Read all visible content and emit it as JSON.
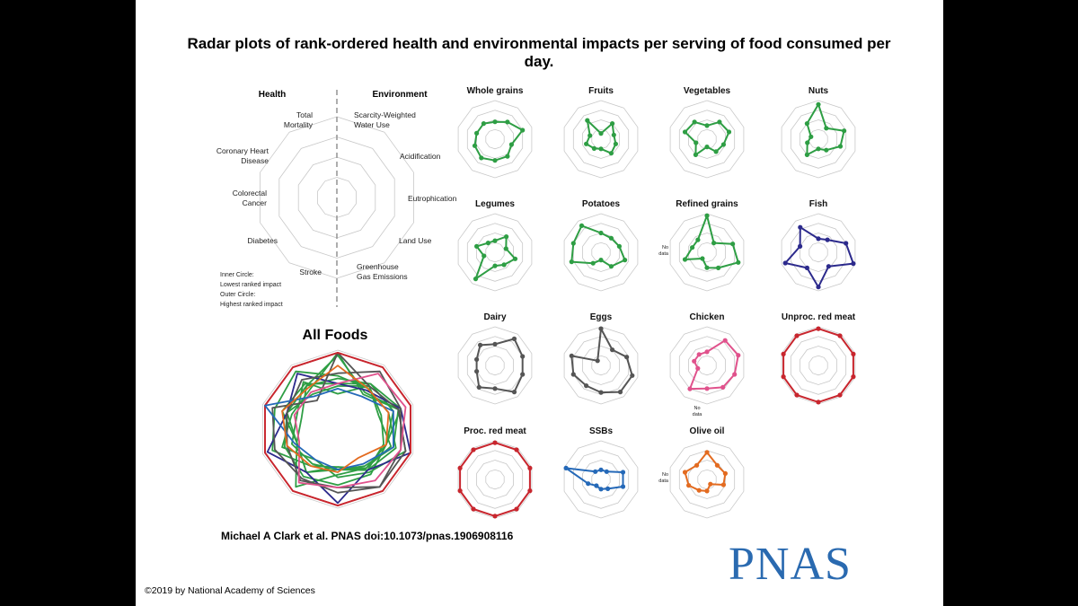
{
  "chart_data": {
    "type": "radar",
    "title": "Radar plots of rank-ordered health and environmental impacts per serving of food consumed per day.",
    "title_lines": [
      "Radar plots of rank-ordered health and environmental impacts per serving of food consumed per",
      "day."
    ],
    "legend": {
      "health_header": "Health",
      "environment_header": "Environment",
      "axes": [
        {
          "label": [
            "Total",
            "Mortality"
          ]
        },
        {
          "label": [
            "Scarcity-Weighted",
            "Water Use"
          ]
        },
        {
          "label": [
            "Acidification"
          ]
        },
        {
          "label": [
            "Eutrophication"
          ]
        },
        {
          "label": [
            "Land Use"
          ]
        },
        {
          "label": [
            "Greenhouse",
            "Gas Emissions"
          ]
        },
        {
          "label": [
            "Stroke"
          ]
        },
        {
          "label": [
            "Diabetes"
          ]
        },
        {
          "label": [
            "Colorectal",
            "Cancer"
          ]
        },
        {
          "label": [
            "Coronary Heart",
            "Disease"
          ]
        }
      ],
      "notes": [
        "Inner Circle:",
        "Lowest ranked impact",
        "Outer Circle:",
        "Highest ranked impact"
      ]
    },
    "all_foods_title": "All Foods",
    "no_data_label": [
      "No",
      "data"
    ],
    "axis_order": [
      "Total Mortality",
      "Scarcity-Weighted Water Use",
      "Acidification",
      "Eutrophication",
      "Land Use",
      "Greenhouse Gas Emissions",
      "Stroke",
      "Diabetes",
      "Colorectal Cancer",
      "Coronary Heart Disease"
    ],
    "rank_range": [
      0,
      1
    ],
    "series": [
      {
        "name": "Whole grains",
        "color": "#2e9e44",
        "values": [
          0.45,
          0.55,
          0.75,
          0.45,
          0.55,
          0.55,
          0.6,
          0.55,
          0.5,
          0.5
        ],
        "no_data": null
      },
      {
        "name": "Fruits",
        "color": "#2e9e44",
        "values": [
          0.15,
          0.5,
          0.35,
          0.4,
          0.45,
          0.25,
          0.3,
          0.4,
          0.3,
          0.6
        ],
        "no_data": null
      },
      {
        "name": "Vegetables",
        "color": "#2e9e44",
        "values": [
          0.35,
          0.55,
          0.6,
          0.45,
          0.4,
          0.2,
          0.5,
          0.3,
          0.6,
          0.55
        ],
        "no_data": null
      },
      {
        "name": "Nuts",
        "color": "#2e9e44",
        "values": [
          0.9,
          0.35,
          0.7,
          0.6,
          0.35,
          0.25,
          0.5,
          0.3,
          0.2,
          0.5
        ],
        "no_data": null
      },
      {
        "name": "Legumes",
        "color": "#2e9e44",
        "values": [
          0.3,
          0.5,
          0.3,
          0.55,
          0.4,
          0.35,
          0.85,
          0.3,
          0.5,
          0.3
        ],
        "no_data": null
      },
      {
        "name": "Potatoes",
        "color": "#2e9e44",
        "values": [
          0.5,
          0.45,
          0.5,
          0.65,
          0.45,
          0.2,
          0.35,
          0.8,
          0.75,
          0.85
        ],
        "no_data": null
      },
      {
        "name": "Refined grains",
        "color": "#2e9e44",
        "values": [
          0.95,
          0.3,
          0.7,
          0.85,
          0.5,
          0.4,
          0.2,
          0.6,
          0.4,
          0.4
        ],
        "no_data": 7
      },
      {
        "name": "Fish",
        "color": "#2c2a8c",
        "values": [
          0.35,
          0.4,
          0.75,
          0.95,
          0.45,
          0.9,
          0.5,
          0.9,
          0.5,
          0.8
        ],
        "no_data": null
      },
      {
        "name": "Dairy",
        "color": "#555555",
        "values": [
          0.55,
          0.85,
          0.75,
          0.75,
          0.85,
          0.6,
          0.7,
          0.5,
          0.5,
          0.65
        ],
        "no_data": null
      },
      {
        "name": "Eggs",
        "color": "#555555",
        "values": [
          0.95,
          0.5,
          0.7,
          0.85,
          0.85,
          0.7,
          0.65,
          0.75,
          0.8,
          0.15
        ],
        "no_data": null
      },
      {
        "name": "Chicken",
        "color": "#e0528c",
        "values": [
          0.35,
          0.8,
          0.85,
          0.75,
          0.7,
          0.6,
          0.75,
          0.25,
          0.35,
          0.35
        ],
        "no_data": 7
      },
      {
        "name": "Unproc. red meat",
        "color": "#c8262e",
        "values": [
          0.95,
          0.95,
          0.95,
          0.95,
          0.95,
          0.95,
          0.95,
          0.95,
          0.95,
          0.95
        ],
        "no_data": null
      },
      {
        "name": "Proc. red meat",
        "color": "#c8262e",
        "values": [
          0.95,
          0.95,
          0.95,
          0.95,
          0.95,
          0.95,
          0.95,
          0.95,
          0.95,
          0.95
        ],
        "no_data": null
      },
      {
        "name": "SSBs",
        "color": "#2569b8",
        "values": [
          0.25,
          0.25,
          0.6,
          0.6,
          0.3,
          0.25,
          0.2,
          0.35,
          0.95,
          0.25
        ],
        "no_data": null
      },
      {
        "name": "Olive oil",
        "color": "#e36b20",
        "values": [
          0.7,
          0.45,
          0.5,
          0.45,
          0.15,
          0.3,
          0.35,
          0.5,
          0.6,
          0.45
        ],
        "no_data": 7
      }
    ]
  },
  "citation": "Michael A Clark et al. PNAS doi:10.1073/pnas.1906908116",
  "logo_text": "PNAS",
  "copyright": "©2019 by National Academy of Sciences",
  "colors": {
    "slide_bg": "#ffffff",
    "grid": "#c8c8c8",
    "logo": "#2a6ab0"
  }
}
